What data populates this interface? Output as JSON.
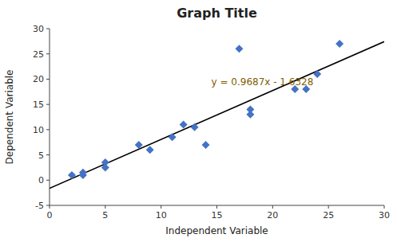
{
  "chart_data": {
    "type": "scatter",
    "title": "Graph Title",
    "xlabel": "Independent Variable",
    "ylabel": "Dependent Variable",
    "series": [
      {
        "type": "scatter",
        "color": "#4472c4",
        "marker": "diamond",
        "x": [
          2,
          3,
          3,
          5,
          5,
          8,
          9,
          11,
          12,
          13,
          14,
          17,
          18,
          18,
          22,
          23,
          24,
          26
        ],
        "values": [
          1,
          1.5,
          1,
          3.5,
          2.5,
          7,
          6,
          8.5,
          11,
          10.5,
          7,
          26,
          14,
          13,
          18,
          18,
          21,
          27
        ]
      },
      {
        "type": "line",
        "color": "black",
        "x": [
          0,
          30
        ],
        "values": [
          -1.6328,
          27.4282
        ]
      }
    ],
    "annotations": [
      {
        "text": "y = 0.9687x - 1.6328",
        "x": 14.5,
        "y": 19.5,
        "color": "#7f6000"
      }
    ],
    "xlim": [
      0,
      30
    ],
    "ylim": [
      -5,
      30
    ],
    "xticks": [
      0,
      5,
      10,
      15,
      20,
      25,
      30
    ],
    "yticks": [
      -5,
      0,
      5,
      10,
      15,
      20,
      25,
      30
    ],
    "grid": false
  }
}
